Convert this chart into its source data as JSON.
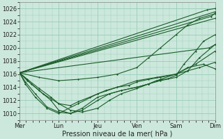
{
  "background_color": "#cce8dc",
  "plot_bg_color": "#cce8dc",
  "grid_color": "#99ccb8",
  "line_color": "#1a5c28",
  "xlabel": "Pression niveau de la mer( hPa )",
  "ylim": [
    1009,
    1027
  ],
  "yticks": [
    1010,
    1012,
    1014,
    1016,
    1018,
    1020,
    1022,
    1024,
    1026
  ],
  "day_labels": [
    "Mer",
    "Lun",
    "Jeu",
    "Ven",
    "Sam",
    "Dim"
  ],
  "day_positions": [
    0,
    1,
    2,
    3,
    4,
    5
  ],
  "lines": [
    {
      "x": [
        0.0,
        0.5,
        1.0,
        1.5,
        2.0,
        2.5,
        3.0,
        3.3,
        3.6,
        4.0,
        4.3,
        4.6,
        5.0
      ],
      "y": [
        1016.2,
        1015.5,
        1015.0,
        1015.2,
        1015.5,
        1016.0,
        1017.0,
        1018.5,
        1020.0,
        1022.0,
        1023.5,
        1024.5,
        1025.2
      ]
    },
    {
      "x": [
        0.0,
        0.3,
        0.6,
        1.0,
        1.3,
        1.6,
        2.0,
        2.3,
        2.6,
        3.0,
        3.3,
        3.6,
        4.0,
        4.3,
        4.7,
        5.0
      ],
      "y": [
        1016.2,
        1014.5,
        1013.0,
        1011.5,
        1010.5,
        1010.2,
        1010.8,
        1012.0,
        1013.0,
        1013.8,
        1014.5,
        1015.2,
        1016.0,
        1017.0,
        1017.5,
        1016.8
      ]
    },
    {
      "x": [
        0.0,
        0.2,
        0.5,
        0.8,
        1.0,
        1.3,
        1.6,
        2.0,
        2.3,
        2.6,
        3.0,
        3.3,
        3.5,
        3.8,
        4.0,
        4.2,
        4.5,
        4.7,
        5.0
      ],
      "y": [
        1016.2,
        1015.0,
        1013.5,
        1012.0,
        1010.5,
        1010.0,
        1010.5,
        1012.0,
        1013.0,
        1013.5,
        1014.0,
        1014.5,
        1015.0,
        1015.3,
        1015.8,
        1017.5,
        1019.5,
        1021.0,
        1022.0
      ]
    },
    {
      "x": [
        0.0,
        0.15,
        0.4,
        0.7,
        1.0,
        1.3,
        1.6,
        2.0,
        2.3,
        2.6,
        3.0,
        3.3,
        3.6,
        4.0,
        4.3,
        4.6,
        5.0
      ],
      "y": [
        1016.2,
        1014.8,
        1013.0,
        1011.0,
        1010.2,
        1010.0,
        1010.8,
        1012.5,
        1013.0,
        1013.5,
        1014.0,
        1014.5,
        1015.0,
        1015.5,
        1016.5,
        1018.5,
        1020.5
      ]
    },
    {
      "x": [
        0.0,
        0.15,
        0.4,
        0.7,
        1.0,
        1.5,
        2.0,
        2.5,
        3.0,
        3.5,
        4.0,
        4.5,
        5.0
      ],
      "y": [
        1016.2,
        1014.5,
        1012.5,
        1010.8,
        1010.0,
        1011.5,
        1013.0,
        1014.0,
        1015.0,
        1015.5,
        1016.0,
        1017.5,
        1019.5
      ]
    },
    {
      "x": [
        0.0,
        0.2,
        0.5,
        0.8,
        1.0,
        1.3,
        1.5,
        1.8,
        2.0,
        2.2,
        2.5,
        2.8,
        3.0,
        3.3,
        3.6,
        4.0,
        4.3,
        4.6,
        5.0
      ],
      "y": [
        1016.2,
        1015.2,
        1013.8,
        1012.5,
        1011.5,
        1011.2,
        1011.8,
        1012.5,
        1013.0,
        1013.5,
        1014.0,
        1014.3,
        1014.8,
        1015.2,
        1015.5,
        1016.0,
        1016.5,
        1017.0,
        1017.8
      ]
    },
    {
      "x": [
        0.0,
        5.0
      ],
      "y": [
        1016.2,
        1025.5
      ]
    },
    {
      "x": [
        0.0,
        5.0
      ],
      "y": [
        1016.2,
        1024.5
      ]
    },
    {
      "x": [
        0.0,
        4.8,
        5.0
      ],
      "y": [
        1016.2,
        1025.8,
        1026.0
      ]
    },
    {
      "x": [
        0.0,
        4.9,
        5.0
      ],
      "y": [
        1016.2,
        1024.8,
        1025.3
      ]
    },
    {
      "x": [
        0.0,
        4.85,
        5.0
      ],
      "y": [
        1016.2,
        1020.0,
        1020.5
      ]
    }
  ]
}
